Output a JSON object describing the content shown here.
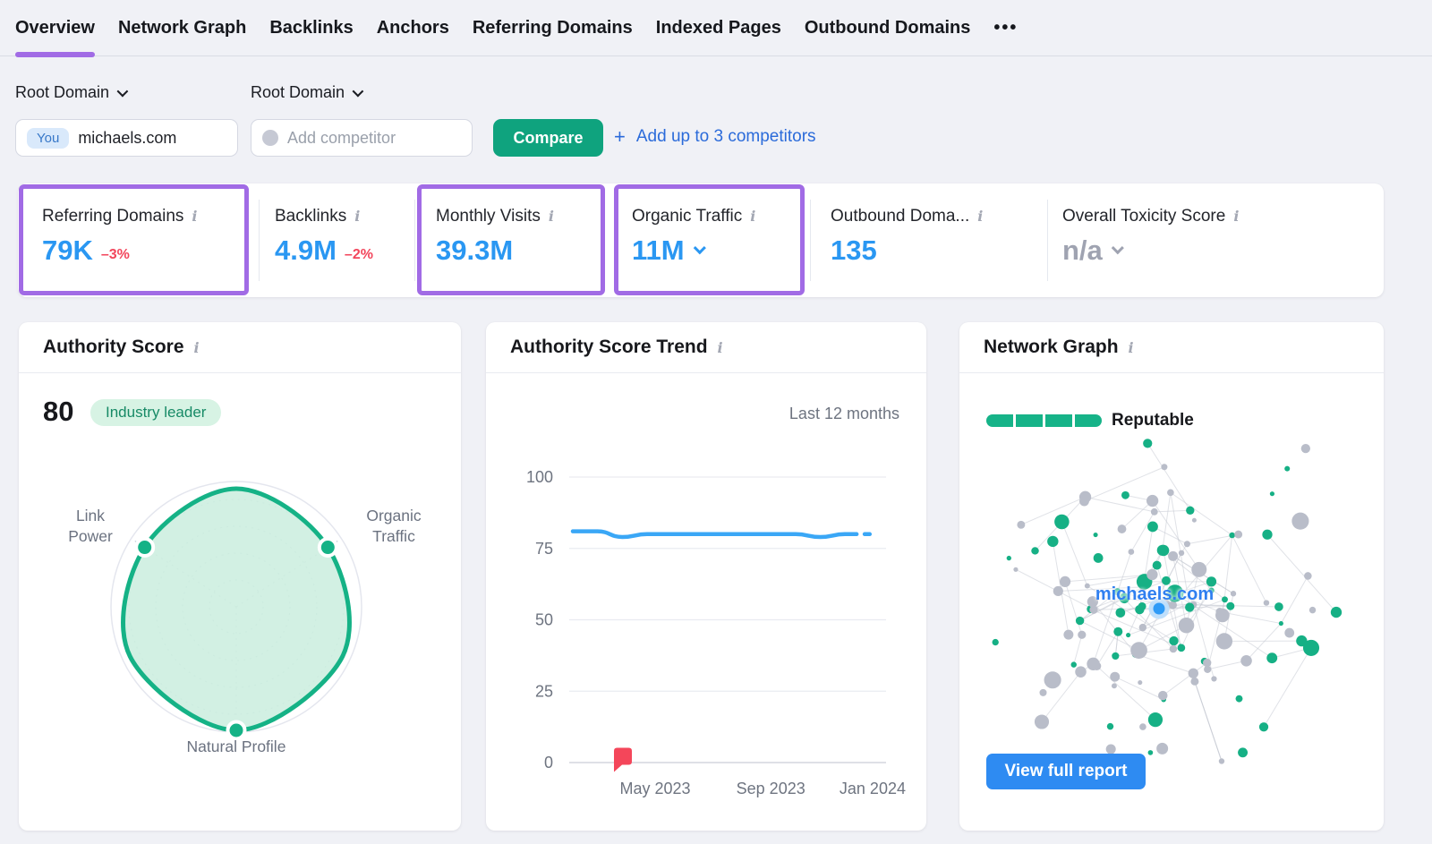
{
  "nav": {
    "items": [
      {
        "label": "Overview",
        "active": true
      },
      {
        "label": "Network Graph",
        "active": false
      },
      {
        "label": "Backlinks",
        "active": false
      },
      {
        "label": "Anchors",
        "active": false
      },
      {
        "label": "Referring Domains",
        "active": false
      },
      {
        "label": "Indexed Pages",
        "active": false
      },
      {
        "label": "Outbound Domains",
        "active": false
      }
    ],
    "more_label": "•••"
  },
  "filters": {
    "root_domain_label_you": "Root Domain",
    "root_domain_label_competitor": "Root Domain",
    "you_badge": "You",
    "you_domain": "michaels.com",
    "competitor_placeholder": "Add competitor",
    "compare_label": "Compare",
    "plus": "+",
    "add_competitors_label": "Add up to 3 competitors"
  },
  "metrics": [
    {
      "label": "Referring Domains",
      "value": "79K",
      "delta": "–3%",
      "highlighted": true
    },
    {
      "label": "Backlinks",
      "value": "4.9M",
      "delta": "–2%",
      "highlighted": false
    },
    {
      "label": "Monthly Visits",
      "value": "39.3M",
      "delta": "",
      "highlighted": true
    },
    {
      "label": "Organic Traffic",
      "value": "11M",
      "delta": "",
      "highlighted": true,
      "has_dropdown": true
    },
    {
      "label": "Outbound Doma...",
      "value": "135",
      "delta": "",
      "highlighted": false
    },
    {
      "label": "Overall Toxicity Score",
      "value": "n/a",
      "delta": "",
      "highlighted": false,
      "has_dropdown": true,
      "muted": true
    }
  ],
  "authority_score": {
    "title": "Authority Score",
    "info_icon": "i",
    "score": "80",
    "badge": "Industry leader",
    "axes": {
      "left": "Link\nPower",
      "right": "Organic\nTraffic",
      "bottom": "Natural Profile"
    }
  },
  "chart_data": {
    "type": "line",
    "title": "Authority Score Trend",
    "range_label": "Last 12 months",
    "ylabel": "",
    "xlabel": "",
    "ylim": [
      0,
      100
    ],
    "y_ticks": [
      0,
      25,
      50,
      75,
      100
    ],
    "x_ticks": [
      {
        "label": "May 2023",
        "f": 0.263
      },
      {
        "label": "Sep 2023",
        "f": 0.632
      },
      {
        "label": "Jan 2024",
        "f": 0.957
      }
    ],
    "series": [
      {
        "name": "Authority Score",
        "values": [
          81,
          81,
          79,
          80,
          80,
          80,
          80,
          80,
          80,
          80,
          79,
          80,
          80
        ]
      }
    ],
    "solid_until_index": 11,
    "flag_f": 0.16,
    "line_color": "#3aa7f6",
    "flag_color": "#f4465a",
    "grid": true,
    "legend": "none"
  },
  "network": {
    "title": "Network Graph",
    "info_icon": "i",
    "rating_label": "Reputable",
    "rating_segments": 4,
    "center_label": "michaels.com",
    "button_label": "View full report",
    "node_green": "#16b085",
    "node_grey": "#b9bdc9",
    "edge_color": "#c7cad3",
    "center_node_color": "#2f9bf7"
  },
  "colors": {
    "accent_purple": "#a16be5",
    "metric_blue": "#2a97f2",
    "delta_red": "#f2465c",
    "brand_green": "#0fa37e",
    "radar_green": "#15b286",
    "radar_fill": "#cdeee0",
    "link_blue": "#2b6bda",
    "button_blue": "#2e8bf2",
    "muted_grey": "#9fa3b1"
  }
}
